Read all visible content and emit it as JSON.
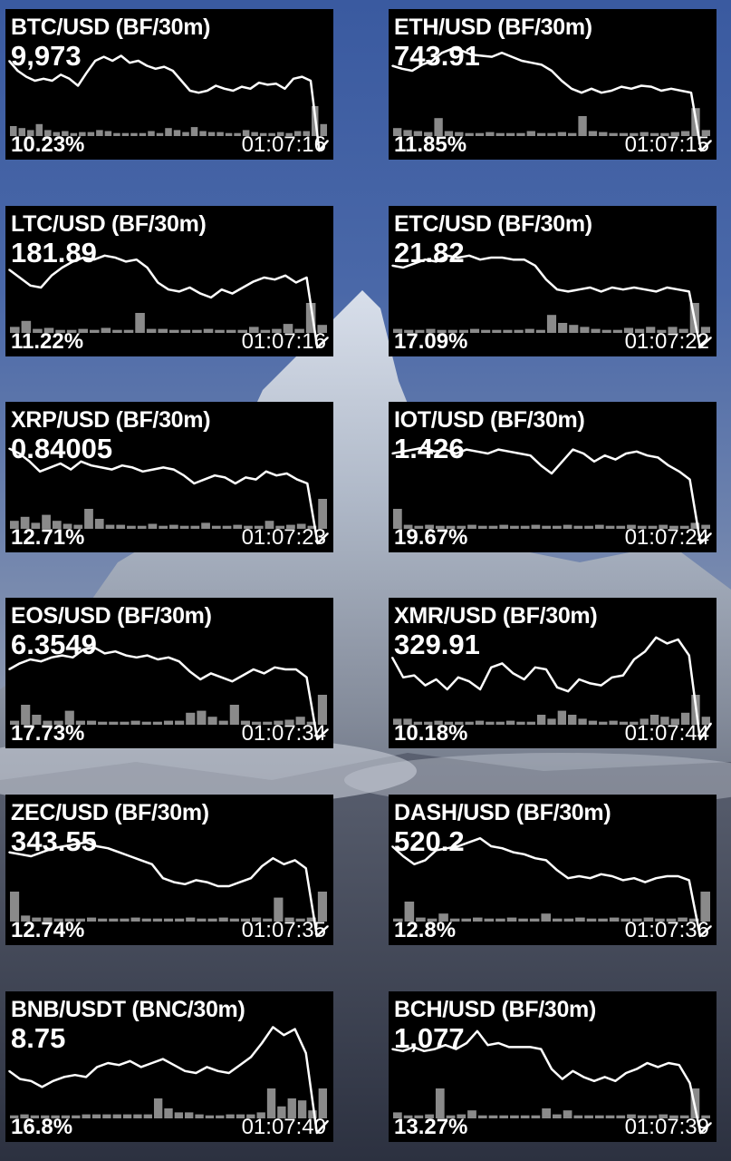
{
  "wallpaper": {
    "description_icon": "mountain-wallpaper",
    "sky_color": "#4a68a8"
  },
  "colors": {
    "widget_bg": "#000000",
    "text": "#ffffff",
    "line": "#ffffff",
    "volume": "#8a8a8a"
  },
  "widgets": [
    {
      "title": "BTC/USD (BF/30m)",
      "price": "9,973",
      "change": "10.23%",
      "time": "01:07:16",
      "chart_data": {
        "type": "line",
        "line": [
          80,
          70,
          64,
          60,
          62,
          60,
          66,
          62,
          55,
          68,
          80,
          84,
          80,
          85,
          78,
          80,
          75,
          72,
          74,
          70,
          60,
          50,
          48,
          50,
          55,
          52,
          50,
          54,
          52,
          58,
          56,
          57,
          52,
          62,
          64,
          60,
          -10,
          0
        ],
        "volume": [
          10,
          8,
          6,
          12,
          6,
          4,
          5,
          3,
          4,
          4,
          6,
          5,
          3,
          3,
          3,
          3,
          5,
          3,
          8,
          6,
          4,
          9,
          5,
          4,
          4,
          3,
          3,
          6,
          4,
          3,
          3,
          4,
          3,
          5,
          5,
          30,
          12
        ]
      }
    },
    {
      "title": "ETH/USD (BF/30m)",
      "price": "743.91",
      "change": "11.85%",
      "time": "01:07:15",
      "chart_data": {
        "type": "line",
        "line": [
          75,
          72,
          70,
          76,
          80,
          88,
          92,
          90,
          86,
          85,
          84,
          88,
          84,
          80,
          78,
          76,
          70,
          60,
          52,
          48,
          52,
          48,
          50,
          54,
          52,
          55,
          54,
          50,
          52,
          50,
          48,
          -10,
          0
        ],
        "volume": [
          8,
          6,
          5,
          4,
          18,
          5,
          4,
          3,
          3,
          4,
          3,
          3,
          3,
          5,
          3,
          3,
          4,
          3,
          20,
          5,
          4,
          3,
          3,
          3,
          4,
          3,
          3,
          4,
          5,
          28,
          6
        ]
      }
    },
    {
      "title": "LTC/USD (BF/30m)",
      "price": "181.89",
      "change": "11.22%",
      "time": "01:07:16",
      "chart_data": {
        "type": "line",
        "line": [
          68,
          60,
          52,
          50,
          62,
          70,
          76,
          80,
          78,
          82,
          80,
          76,
          78,
          70,
          55,
          48,
          46,
          50,
          44,
          40,
          48,
          44,
          50,
          56,
          60,
          58,
          62,
          55,
          60,
          -10,
          0
        ],
        "volume": [
          6,
          12,
          4,
          5,
          3,
          3,
          4,
          3,
          5,
          3,
          3,
          20,
          4,
          4,
          3,
          3,
          3,
          4,
          3,
          3,
          3,
          6,
          3,
          4,
          9,
          4,
          30,
          8
        ]
      }
    },
    {
      "title": "ETC/USD (BF/30m)",
      "price": "21.82",
      "change": "17.09%",
      "time": "01:07:22",
      "chart_data": {
        "type": "line",
        "line": [
          72,
          70,
          74,
          78,
          76,
          82,
          80,
          82,
          78,
          80,
          80,
          78,
          78,
          72,
          58,
          48,
          46,
          48,
          50,
          46,
          50,
          48,
          50,
          48,
          46,
          50,
          48,
          46,
          -10,
          0
        ],
        "volume": [
          4,
          3,
          3,
          4,
          3,
          3,
          3,
          4,
          3,
          3,
          3,
          3,
          4,
          3,
          18,
          10,
          8,
          6,
          4,
          3,
          3,
          5,
          4,
          6,
          3,
          6,
          4,
          30,
          6
        ]
      }
    },
    {
      "title": "XRP/USD (BF/30m)",
      "price": "0.84005",
      "change": "12.71%",
      "time": "01:07:23",
      "chart_data": {
        "type": "line",
        "line": [
          85,
          80,
          72,
          62,
          66,
          70,
          64,
          72,
          68,
          66,
          64,
          68,
          66,
          62,
          64,
          66,
          64,
          58,
          50,
          54,
          58,
          56,
          50,
          56,
          54,
          62,
          58,
          60,
          54,
          50,
          -10,
          0
        ],
        "volume": [
          8,
          12,
          6,
          14,
          8,
          5,
          4,
          20,
          10,
          4,
          4,
          3,
          3,
          5,
          3,
          4,
          3,
          3,
          6,
          3,
          3,
          4,
          3,
          3,
          8,
          3,
          4,
          5,
          3,
          30
        ]
      }
    },
    {
      "title": "IOT/USD (BF/30m)",
      "price": "1.426",
      "change": "19.67%",
      "time": "01:07:24",
      "chart_data": {
        "type": "line",
        "line": [
          80,
          82,
          84,
          86,
          82,
          84,
          80,
          84,
          82,
          80,
          84,
          82,
          80,
          78,
          68,
          60,
          72,
          84,
          80,
          72,
          78,
          74,
          80,
          82,
          78,
          76,
          68,
          62,
          54,
          -10,
          0
        ],
        "volume": [
          20,
          4,
          3,
          4,
          3,
          3,
          3,
          4,
          3,
          3,
          4,
          3,
          3,
          4,
          3,
          3,
          4,
          3,
          3,
          4,
          3,
          3,
          4,
          3,
          3,
          4,
          3,
          3,
          6,
          4
        ]
      }
    },
    {
      "title": "EOS/USD (BF/30m)",
      "price": "6.3549",
      "change": "17.73%",
      "time": "01:07:34",
      "chart_data": {
        "type": "line",
        "line": [
          60,
          66,
          70,
          68,
          72,
          74,
          72,
          80,
          82,
          76,
          78,
          74,
          72,
          74,
          70,
          72,
          68,
          58,
          50,
          56,
          52,
          48,
          54,
          60,
          56,
          62,
          60,
          60,
          52,
          -10,
          0
        ],
        "volume": [
          4,
          20,
          10,
          4,
          4,
          14,
          4,
          4,
          3,
          3,
          3,
          4,
          3,
          3,
          4,
          4,
          12,
          14,
          8,
          4,
          20,
          4,
          3,
          3,
          4,
          5,
          8,
          3,
          30
        ]
      }
    },
    {
      "title": "XMR/USD (BF/30m)",
      "price": "329.91",
      "change": "10.18%",
      "time": "01:07:44",
      "chart_data": {
        "type": "line",
        "line": [
          72,
          52,
          54,
          44,
          50,
          40,
          52,
          48,
          40,
          62,
          66,
          56,
          50,
          62,
          60,
          42,
          38,
          50,
          46,
          44,
          52,
          54,
          70,
          78,
          92,
          86,
          90,
          74,
          -10,
          6
        ],
        "volume": [
          6,
          6,
          3,
          3,
          4,
          3,
          3,
          3,
          4,
          3,
          3,
          4,
          3,
          3,
          10,
          6,
          14,
          10,
          6,
          4,
          3,
          4,
          3,
          3,
          6,
          10,
          8,
          6,
          12,
          30,
          8
        ]
      }
    },
    {
      "title": "ZEC/USD (BF/30m)",
      "price": "343.55",
      "change": "12.74%",
      "time": "01:07:35",
      "chart_data": {
        "type": "line",
        "line": [
          74,
          72,
          70,
          74,
          78,
          80,
          82,
          84,
          80,
          78,
          74,
          70,
          66,
          62,
          48,
          44,
          42,
          46,
          44,
          40,
          40,
          44,
          48,
          60,
          68,
          62,
          66,
          58,
          -10,
          0
        ],
        "volume": [
          30,
          6,
          4,
          4,
          3,
          3,
          3,
          4,
          3,
          3,
          3,
          4,
          3,
          3,
          3,
          3,
          4,
          3,
          3,
          4,
          3,
          3,
          4,
          3,
          24,
          4,
          3,
          4,
          30
        ]
      }
    },
    {
      "title": "DASH/USD (BF/30m)",
      "price": "520.2",
      "change": "12.8%",
      "time": "01:07:36",
      "chart_data": {
        "type": "line",
        "line": [
          80,
          70,
          62,
          66,
          76,
          78,
          80,
          84,
          88,
          80,
          78,
          74,
          72,
          68,
          66,
          56,
          48,
          50,
          48,
          52,
          50,
          46,
          48,
          44,
          48,
          50,
          50,
          46,
          -10,
          0
        ],
        "volume": [
          3,
          20,
          4,
          3,
          8,
          3,
          3,
          4,
          3,
          3,
          4,
          3,
          3,
          8,
          3,
          3,
          4,
          3,
          3,
          4,
          3,
          3,
          4,
          3,
          3,
          4,
          3,
          30
        ]
      }
    },
    {
      "title": "BNB/USDT (BNC/30m)",
      "price": "8.75",
      "change": "16.8%",
      "time": "01:07:40",
      "chart_data": {
        "type": "line",
        "line": [
          52,
          44,
          42,
          36,
          42,
          46,
          48,
          46,
          56,
          60,
          58,
          62,
          56,
          60,
          64,
          58,
          52,
          50,
          56,
          52,
          50,
          58,
          66,
          80,
          96,
          88,
          94,
          70,
          -10,
          2
        ],
        "volume": [
          3,
          4,
          3,
          3,
          3,
          3,
          3,
          4,
          4,
          4,
          4,
          4,
          4,
          4,
          20,
          10,
          6,
          6,
          4,
          3,
          3,
          4,
          4,
          4,
          6,
          30,
          12,
          20,
          18,
          8,
          30
        ]
      }
    },
    {
      "title": "BCH/USD (BF/30m)",
      "price": "1,077",
      "change": "13.27%",
      "time": "01:07:39",
      "chart_data": {
        "type": "line",
        "line": [
          74,
          72,
          76,
          72,
          74,
          78,
          74,
          80,
          92,
          78,
          80,
          76,
          76,
          76,
          74,
          54,
          44,
          52,
          46,
          42,
          46,
          42,
          50,
          54,
          60,
          56,
          60,
          58,
          40,
          -10,
          0
        ],
        "volume": [
          6,
          3,
          3,
          4,
          30,
          3,
          4,
          8,
          3,
          3,
          3,
          3,
          3,
          3,
          10,
          4,
          8,
          3,
          3,
          3,
          3,
          3,
          4,
          3,
          3,
          4,
          3,
          3,
          30,
          3
        ]
      }
    }
  ]
}
